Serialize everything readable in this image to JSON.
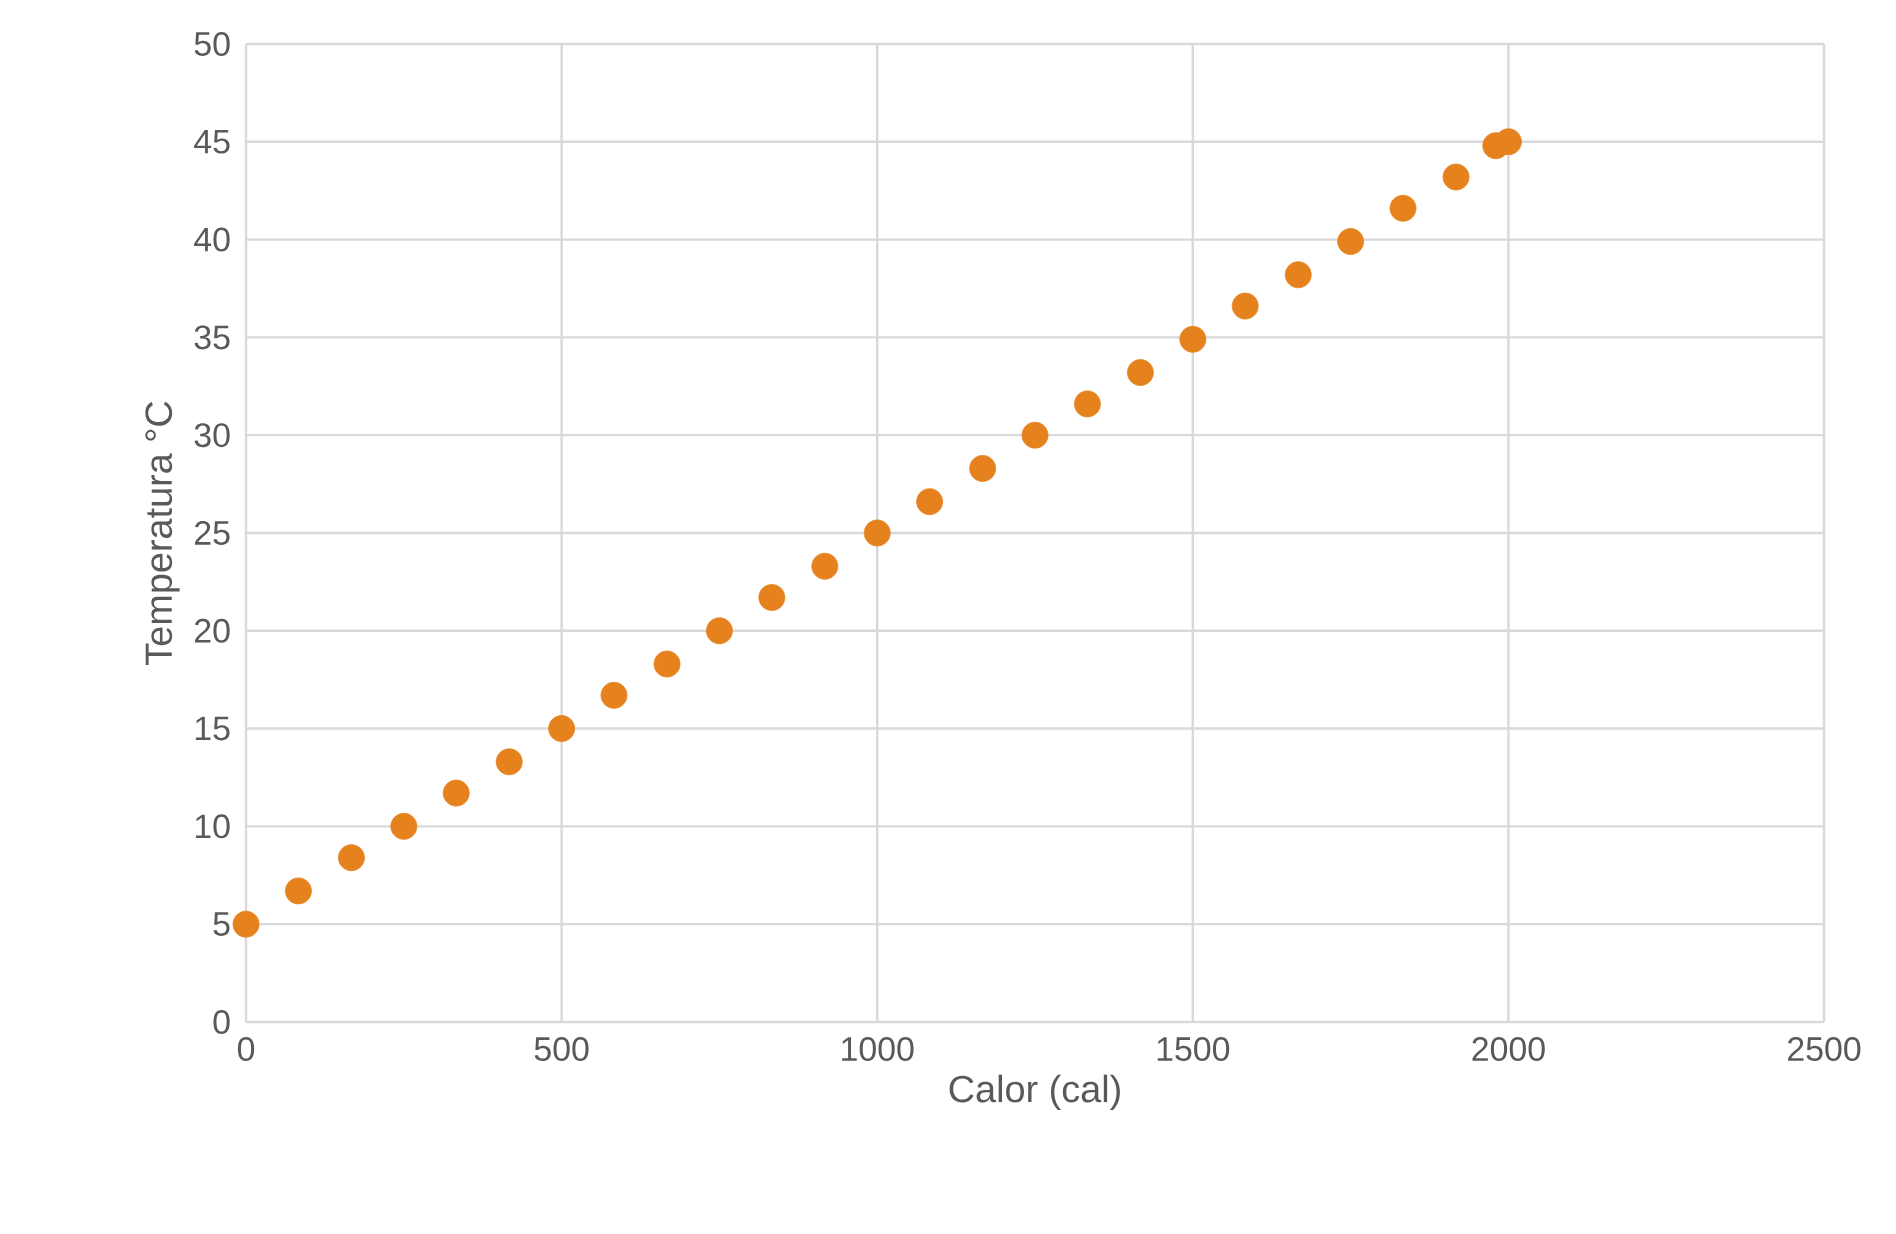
{
  "chart_data": {
    "type": "scatter",
    "xlabel": "Calor (cal)",
    "ylabel": "Temperatura °C",
    "x": [
      0,
      83,
      167,
      250,
      333,
      417,
      500,
      583,
      667,
      750,
      833,
      917,
      1000,
      1083,
      1167,
      1250,
      1333,
      1417,
      1500,
      1583,
      1667,
      1750,
      1833,
      1917,
      1980,
      2000
    ],
    "series": [
      {
        "color": "#e6821e",
        "values": [
          5,
          6.7,
          8.4,
          10,
          11.7,
          13.3,
          15,
          16.7,
          18.3,
          20,
          21.7,
          23.3,
          25,
          26.6,
          28.3,
          30,
          31.6,
          33.2,
          34.9,
          36.6,
          38.2,
          39.9,
          41.6,
          43.2,
          44.8,
          45
        ]
      }
    ],
    "xlim": [
      0,
      2500
    ],
    "ylim": [
      0,
      50
    ],
    "xticks": [
      0,
      500,
      1000,
      1500,
      2000,
      2500
    ],
    "yticks": [
      0,
      5,
      10,
      15,
      20,
      25,
      30,
      35,
      40,
      45,
      50
    ],
    "grid": true,
    "marker": "circle"
  }
}
